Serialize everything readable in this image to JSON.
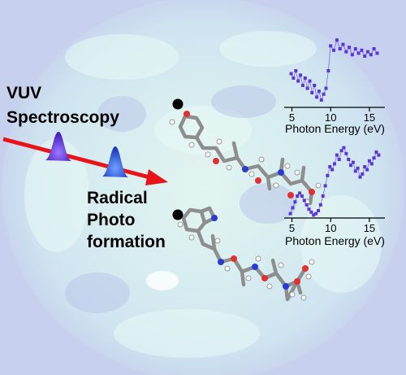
{
  "labels": {
    "vuv_line1": "VUV",
    "vuv_line2": "Spectroscopy",
    "radical_line1": "Radical",
    "radical_line2": "Photo",
    "radical_line3": "formation"
  },
  "colors": {
    "background": "#c8d2ee",
    "sun_glow": "#d9f2ec",
    "arrow": "#e8141a",
    "pulse_purple": "#6a36d8",
    "pulse_blue": "#2a4fd8",
    "spectrum_points": "#5a35e0",
    "radical_dot": "#000000",
    "oxygen": "#e03030",
    "nitrogen": "#2a3ad8"
  },
  "chart_data": [
    {
      "type": "line",
      "xlabel": "Photon Energy (eV)",
      "ylabel": "",
      "xlim": [
        4,
        17
      ],
      "ylim": [
        0,
        1
      ],
      "xticks": [
        5,
        10,
        15
      ],
      "x": [
        4.9,
        5.2,
        5.5,
        5.8,
        6.1,
        6.4,
        6.7,
        7.0,
        7.3,
        7.6,
        7.9,
        8.2,
        8.5,
        8.8,
        9.1,
        9.4,
        9.7,
        10.0,
        10.4,
        10.8,
        11.2,
        11.6,
        12.0,
        12.4,
        12.8,
        13.2,
        13.6,
        14.0,
        14.4,
        14.8,
        15.2,
        15.6,
        16.0
      ],
      "series": [
        {
          "values": [
            0.46,
            0.4,
            0.5,
            0.36,
            0.44,
            0.3,
            0.4,
            0.26,
            0.36,
            0.2,
            0.3,
            0.14,
            0.22,
            0.1,
            0.18,
            0.26,
            0.5,
            0.84,
            0.78,
            0.92,
            0.8,
            0.86,
            0.76,
            0.82,
            0.72,
            0.8,
            0.74,
            0.78,
            0.7,
            0.76,
            0.72,
            0.8,
            0.74
          ]
        }
      ]
    },
    {
      "type": "line",
      "xlabel": "Photon Energy (eV)",
      "ylabel": "",
      "xlim": [
        4,
        17
      ],
      "ylim": [
        0,
        1
      ],
      "xticks": [
        5,
        10,
        15
      ],
      "x": [
        4.8,
        5.1,
        5.4,
        5.7,
        6.0,
        6.3,
        6.6,
        6.9,
        7.2,
        7.5,
        7.8,
        8.1,
        8.4,
        8.7,
        9.0,
        9.3,
        9.6,
        9.9,
        10.2,
        10.5,
        10.8,
        11.1,
        11.4,
        11.7,
        12.0,
        12.3,
        12.6,
        12.9,
        13.2,
        13.5,
        13.8,
        14.1,
        14.4,
        14.7,
        15.0,
        15.3,
        15.6,
        15.9,
        16.2
      ],
      "series": [
        {
          "values": [
            0.06,
            0.14,
            0.22,
            0.3,
            0.34,
            0.3,
            0.24,
            0.18,
            0.12,
            0.08,
            0.04,
            0.06,
            0.1,
            0.18,
            0.3,
            0.44,
            0.58,
            0.7,
            0.66,
            0.74,
            0.86,
            0.8,
            0.92,
            0.96,
            0.88,
            0.8,
            0.72,
            0.76,
            0.64,
            0.68,
            0.56,
            0.6,
            0.7,
            0.66,
            0.78,
            0.74,
            0.82,
            0.9,
            0.86
          ]
        }
      ]
    }
  ]
}
